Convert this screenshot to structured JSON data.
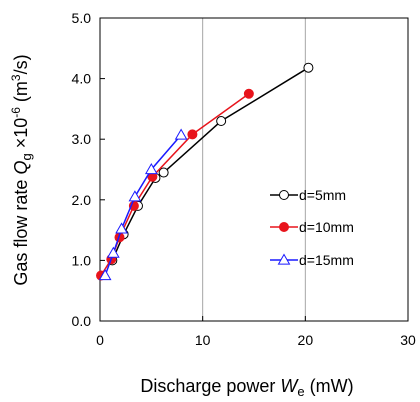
{
  "chart_data": {
    "type": "line",
    "xlabel": {
      "prefix": "Discharge power ",
      "symbol": "W",
      "sub": "e",
      "suffix": " (mW)"
    },
    "ylabel": {
      "prefix": "Gas flow rate ",
      "symbol": "Q",
      "sub": "g",
      "mid": " ×10",
      "sup": "-6",
      "suffix": " (m",
      "sup2": "3",
      "end": "/s)"
    },
    "xlim": [
      0,
      30
    ],
    "ylim": [
      0.0,
      5.0
    ],
    "x_ticks": [
      0,
      10,
      20,
      30
    ],
    "x_tick_labels": [
      "0",
      "10",
      "20",
      "30"
    ],
    "y_ticks": [
      0.0,
      1.0,
      2.0,
      3.0,
      4.0,
      5.0
    ],
    "y_tick_labels": [
      "0.0",
      "1.0",
      "2.0",
      "3.0",
      "4.0",
      "5.0"
    ],
    "grid": {
      "x": true,
      "y": false
    },
    "legend_position": "right-middle",
    "series": [
      {
        "name": "d=5mm",
        "color": "#000000",
        "marker": "circle-open",
        "x": [
          1.2,
          2.3,
          3.7,
          5.4,
          6.2,
          11.8,
          20.3
        ],
        "y": [
          1.0,
          1.43,
          1.9,
          2.36,
          2.45,
          3.3,
          4.18
        ]
      },
      {
        "name": "d=10mm",
        "color": "#e8141c",
        "marker": "circle-filled",
        "x": [
          0.1,
          1.1,
          1.9,
          3.3,
          5.1,
          9.0,
          14.5
        ],
        "y": [
          0.75,
          1.02,
          1.38,
          1.9,
          2.38,
          3.08,
          3.75
        ]
      },
      {
        "name": "d=15mm",
        "color": "#1a1aff",
        "marker": "triangle-open",
        "x": [
          0.5,
          1.3,
          2.1,
          3.4,
          5.0,
          7.9
        ],
        "y": [
          0.75,
          1.12,
          1.52,
          2.05,
          2.5,
          3.07
        ]
      }
    ]
  }
}
